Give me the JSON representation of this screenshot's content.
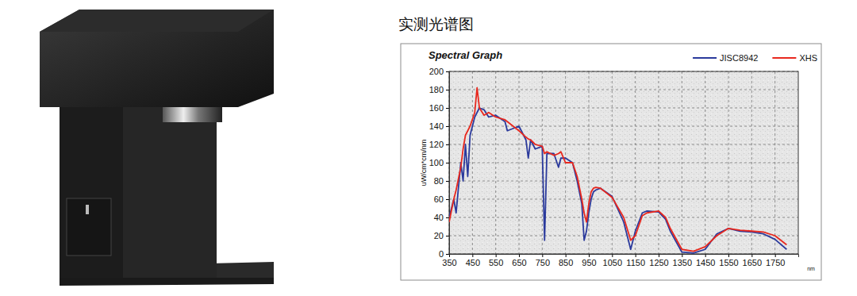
{
  "heading": "实测光谱图",
  "chart_data": {
    "type": "line",
    "title": "Spectral Graph",
    "x_label": "nm",
    "y_label": "uW/cm*cm/nm",
    "x": [
      350,
      370,
      380,
      400,
      410,
      420,
      430,
      440,
      460,
      470,
      480,
      500,
      520,
      550,
      590,
      600,
      650,
      680,
      690,
      700,
      720,
      750,
      760,
      770,
      800,
      820,
      830,
      850,
      880,
      900,
      920,
      930,
      940,
      950,
      960,
      970,
      980,
      1000,
      1050,
      1100,
      1130,
      1150,
      1180,
      1200,
      1250,
      1280,
      1300,
      1350,
      1400,
      1450,
      1500,
      1550,
      1600,
      1650,
      1700,
      1750,
      1800
    ],
    "series": [
      {
        "name": "JISC8942",
        "color": "#2b3a9c",
        "values": [
          40,
          60,
          45,
          100,
          80,
          120,
          85,
          130,
          150,
          155,
          160,
          158,
          150,
          152,
          145,
          135,
          140,
          125,
          105,
          125,
          115,
          118,
          15,
          110,
          110,
          95,
          105,
          105,
          100,
          80,
          55,
          15,
          25,
          45,
          60,
          68,
          70,
          72,
          63,
          35,
          5,
          25,
          45,
          47,
          46,
          38,
          25,
          2,
          1,
          5,
          22,
          28,
          25,
          24,
          22,
          16,
          5
        ]
      },
      {
        "name": "XHS",
        "color": "#e8281e",
        "values": [
          35,
          60,
          70,
          95,
          115,
          130,
          135,
          140,
          155,
          182,
          160,
          152,
          155,
          150,
          147,
          145,
          135,
          128,
          126,
          125,
          120,
          118,
          110,
          112,
          108,
          110,
          112,
          100,
          100,
          85,
          60,
          45,
          35,
          55,
          68,
          72,
          73,
          72,
          62,
          40,
          15,
          20,
          42,
          45,
          47,
          40,
          28,
          5,
          3,
          8,
          20,
          28,
          26,
          25,
          24,
          20,
          10
        ]
      }
    ],
    "xlim": [
      350,
      1850
    ],
    "xticks": [
      350,
      450,
      550,
      650,
      750,
      850,
      950,
      1050,
      1150,
      1250,
      1350,
      1450,
      1550,
      1650,
      1750
    ],
    "ylim": [
      0,
      200
    ],
    "yticks": [
      0,
      20,
      40,
      60,
      80,
      100,
      120,
      140,
      160,
      180,
      200
    ],
    "grid": true,
    "legend": "upper right"
  }
}
